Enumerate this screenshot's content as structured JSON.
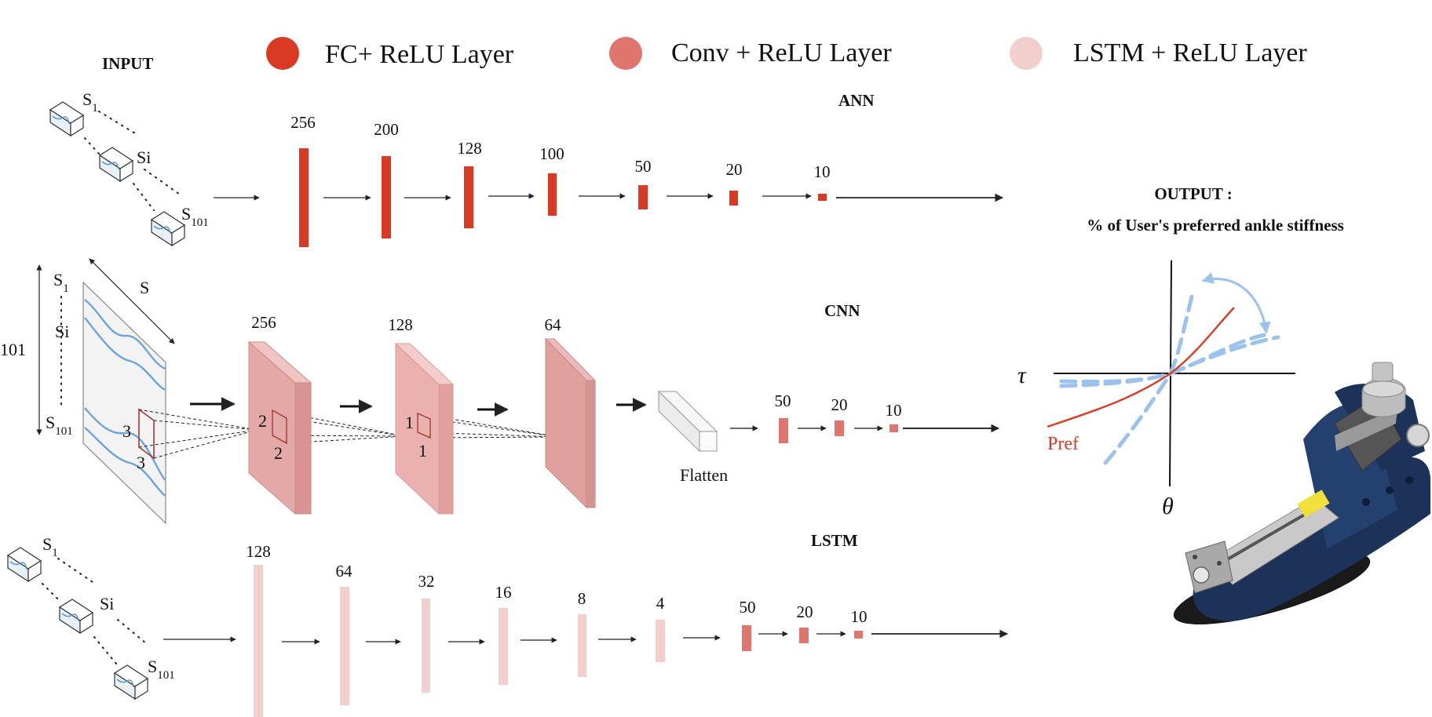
{
  "legend": {
    "fc": {
      "label": "FC+ ReLU Layer",
      "color": "#d93a24"
    },
    "conv": {
      "label": "Conv + ReLU Layer",
      "color": "#e0756d"
    },
    "lstm": {
      "label": "LSTM + ReLU Layer",
      "color": "#f2cfcd"
    }
  },
  "input": {
    "title": "INPUT",
    "s_first": "S",
    "s_first_sub": "1",
    "s_mid": "Si",
    "s_last": "S",
    "s_last_sub": "101",
    "matrix_rows": "101",
    "matrix_cols": "S"
  },
  "ann": {
    "title": "ANN",
    "layers": [
      {
        "label": "256",
        "size": 256
      },
      {
        "label": "200",
        "size": 200
      },
      {
        "label": "128",
        "size": 128
      },
      {
        "label": "100",
        "size": 100
      },
      {
        "label": "50",
        "size": 50
      },
      {
        "label": "20",
        "size": 20
      },
      {
        "label": "10",
        "size": 10
      }
    ]
  },
  "cnn": {
    "title": "CNN",
    "conv_layers": [
      {
        "label": "256",
        "filters": 256
      },
      {
        "label": "128",
        "filters": 128
      },
      {
        "label": "64",
        "filters": 64
      }
    ],
    "kernels": [
      {
        "h": "3",
        "w": "3"
      },
      {
        "h": "2",
        "w": "2"
      },
      {
        "h": "1",
        "w": "1"
      }
    ],
    "flatten_label": "Flatten",
    "fc_layers": [
      {
        "label": "50",
        "size": 50
      },
      {
        "label": "20",
        "size": 20
      },
      {
        "label": "10",
        "size": 10
      }
    ]
  },
  "lstm": {
    "title": "LSTM",
    "layers": [
      {
        "label": "128",
        "size": 128
      },
      {
        "label": "64",
        "size": 64
      },
      {
        "label": "32",
        "size": 32
      },
      {
        "label": "16",
        "size": 16
      },
      {
        "label": "8",
        "size": 8
      },
      {
        "label": "4",
        "size": 4
      }
    ],
    "fc_layers": [
      {
        "label": "50",
        "size": 50
      },
      {
        "label": "20",
        "size": 20
      },
      {
        "label": "10",
        "size": 10
      }
    ]
  },
  "output": {
    "title": "OUTPUT :",
    "subtitle": "% of User's preferred ankle stiffness",
    "y_axis": "τ",
    "x_axis": "θ",
    "curve_label": "Pref",
    "colors": {
      "pref": "#d93a24",
      "range": "#9cc2ec"
    }
  }
}
